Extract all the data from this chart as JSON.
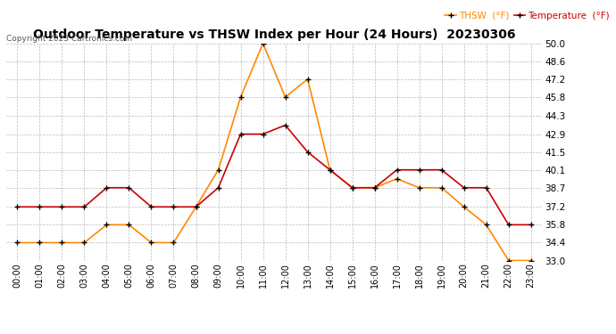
{
  "title": "Outdoor Temperature vs THSW Index per Hour (24 Hours)  20230306",
  "copyright": "Copyright 2023 Cartronics.com",
  "hours": [
    "00:00",
    "01:00",
    "02:00",
    "03:00",
    "04:00",
    "05:00",
    "06:00",
    "07:00",
    "08:00",
    "09:00",
    "10:00",
    "11:00",
    "12:00",
    "13:00",
    "14:00",
    "15:00",
    "16:00",
    "17:00",
    "18:00",
    "19:00",
    "20:00",
    "21:00",
    "22:00",
    "23:00"
  ],
  "temperature": [
    37.2,
    37.2,
    37.2,
    37.2,
    38.7,
    38.7,
    37.2,
    37.2,
    37.2,
    38.7,
    42.9,
    42.9,
    43.6,
    41.5,
    40.1,
    38.7,
    38.7,
    40.1,
    40.1,
    40.1,
    38.7,
    38.7,
    35.8,
    35.8
  ],
  "thsw": [
    34.4,
    34.4,
    34.4,
    34.4,
    35.8,
    35.8,
    34.4,
    34.4,
    37.2,
    40.1,
    45.8,
    50.0,
    45.8,
    47.2,
    40.1,
    38.7,
    38.7,
    39.4,
    38.7,
    38.7,
    37.2,
    35.8,
    33.0,
    33.0
  ],
  "temp_color": "#cc0000",
  "thsw_color": "#ff8800",
  "marker_color": "#000000",
  "ylim_min": 33.0,
  "ylim_max": 50.0,
  "yticks": [
    33.0,
    34.4,
    35.8,
    37.2,
    38.7,
    40.1,
    41.5,
    42.9,
    44.3,
    45.8,
    47.2,
    48.6,
    50.0
  ],
  "background_color": "#ffffff",
  "grid_color": "#bbbbbb",
  "title_fontsize": 10,
  "legend_thsw": "THSW  (°F)",
  "legend_temp": "Temperature  (°F)"
}
